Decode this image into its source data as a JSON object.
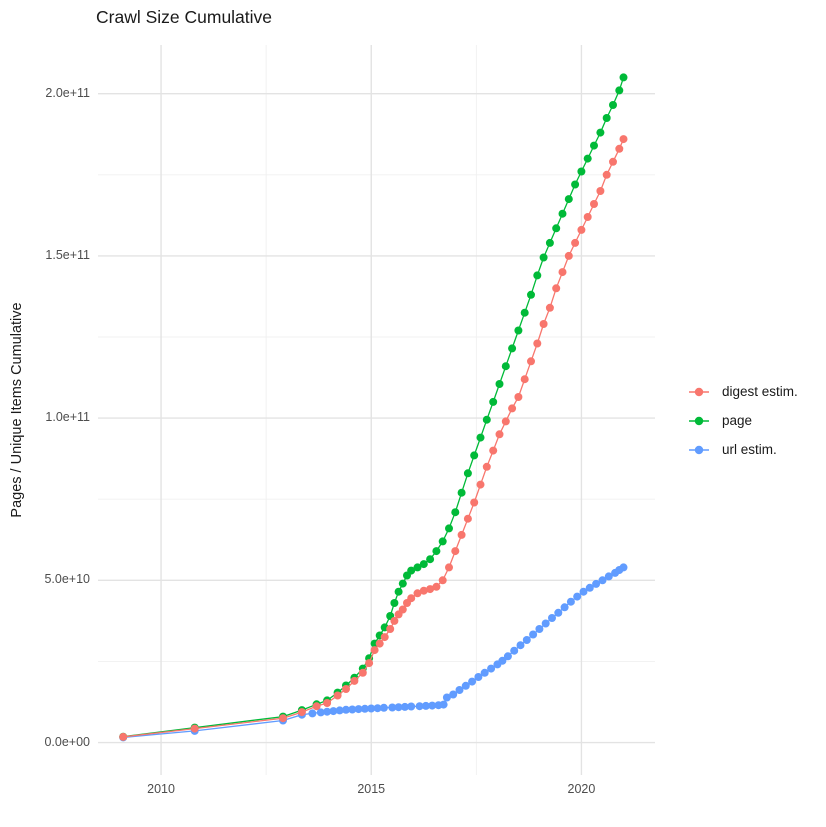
{
  "title": "Crawl Size Cumulative",
  "y_axis_title": "Pages / Unique Items Cumulative",
  "colors": {
    "digest_estim": "#F8766D",
    "page": "#00BA38",
    "url_estim": "#619CFF",
    "grid_major": "#E3E3E3",
    "grid_minor": "#F0F0F0",
    "tick_text": "#4d4d4d",
    "title_text": "#1a1a1a"
  },
  "chart_data": {
    "type": "scatter",
    "title": "Crawl Size Cumulative",
    "xlabel": "",
    "ylabel": "Pages / Unique Items Cumulative",
    "grid": true,
    "legend_position": "right",
    "xlim": [
      2008.5,
      2021.75
    ],
    "ylim": [
      -10000000000.0,
      215000000000.0
    ],
    "x_ticks": [
      2010,
      2015,
      2020
    ],
    "x_tick_labels": [
      "2010",
      "2015",
      "2020"
    ],
    "x_minor_ticks": [
      2012.5,
      2017.5
    ],
    "y_ticks": [
      0,
      50000000000.0,
      100000000000.0,
      150000000000.0,
      200000000000.0
    ],
    "y_tick_labels": [
      "0.0e+00",
      "5.0e+10",
      "1.0e+11",
      "1.5e+11",
      "2.0e+11"
    ],
    "y_minor_ticks": [
      25000000000.0,
      75000000000.0,
      125000000000.0,
      175000000000.0
    ],
    "series": [
      {
        "name": "digest estim.",
        "color": "#F8766D",
        "points": [
          [
            2009.1,
            1750000000.0
          ],
          [
            2010.8,
            4300000000.0
          ],
          [
            2012.9,
            7500000000.0
          ],
          [
            2013.35,
            9400000000.0
          ],
          [
            2013.7,
            11200000000.0
          ],
          [
            2013.95,
            12200000000.0
          ],
          [
            2014.2,
            14500000000.0
          ],
          [
            2014.4,
            16500000000.0
          ],
          [
            2014.6,
            19000000000.0
          ],
          [
            2014.8,
            21500000000.0
          ],
          [
            2014.95,
            24500000000.0
          ],
          [
            2015.08,
            28500000000.0
          ],
          [
            2015.2,
            30500000000.0
          ],
          [
            2015.32,
            32500000000.0
          ],
          [
            2015.45,
            35000000000.0
          ],
          [
            2015.55,
            37500000000.0
          ],
          [
            2015.65,
            39500000000.0
          ],
          [
            2015.75,
            41000000000.0
          ],
          [
            2015.85,
            43000000000.0
          ],
          [
            2015.95,
            44500000000.0
          ],
          [
            2016.1,
            46000000000.0
          ],
          [
            2016.25,
            46800000000.0
          ],
          [
            2016.4,
            47300000000.0
          ],
          [
            2016.55,
            48000000000.0
          ],
          [
            2016.7,
            50000000000.0
          ],
          [
            2016.85,
            54000000000.0
          ],
          [
            2017.0,
            59000000000.0
          ],
          [
            2017.15,
            64000000000.0
          ],
          [
            2017.3,
            69000000000.0
          ],
          [
            2017.45,
            74000000000.0
          ],
          [
            2017.6,
            79500000000.0
          ],
          [
            2017.75,
            85000000000.0
          ],
          [
            2017.9,
            90000000000.0
          ],
          [
            2018.05,
            95000000000.0
          ],
          [
            2018.2,
            99000000000.0
          ],
          [
            2018.35,
            103000000000.0
          ],
          [
            2018.5,
            106500000000.0
          ],
          [
            2018.65,
            112000000000.0
          ],
          [
            2018.8,
            117500000000.0
          ],
          [
            2018.95,
            123000000000.0
          ],
          [
            2019.1,
            129000000000.0
          ],
          [
            2019.25,
            134000000000.0
          ],
          [
            2019.4,
            140000000000.0
          ],
          [
            2019.55,
            145000000000.0
          ],
          [
            2019.7,
            150000000000.0
          ],
          [
            2019.85,
            154000000000.0
          ],
          [
            2020.0,
            158000000000.0
          ],
          [
            2020.15,
            162000000000.0
          ],
          [
            2020.3,
            166000000000.0
          ],
          [
            2020.45,
            170000000000.0
          ],
          [
            2020.6,
            175000000000.0
          ],
          [
            2020.75,
            179000000000.0
          ],
          [
            2020.9,
            183000000000.0
          ],
          [
            2021.0,
            186000000000.0
          ]
        ]
      },
      {
        "name": "page",
        "color": "#00BA38",
        "points": [
          [
            2009.1,
            1800000000.0
          ],
          [
            2010.8,
            4600000000.0
          ],
          [
            2012.9,
            8000000000.0
          ],
          [
            2013.35,
            10000000000.0
          ],
          [
            2013.7,
            11800000000.0
          ],
          [
            2013.95,
            13000000000.0
          ],
          [
            2014.2,
            15400000000.0
          ],
          [
            2014.4,
            17600000000.0
          ],
          [
            2014.6,
            20000000000.0
          ],
          [
            2014.8,
            22800000000.0
          ],
          [
            2014.95,
            26000000000.0
          ],
          [
            2015.08,
            30500000000.0
          ],
          [
            2015.2,
            33000000000.0
          ],
          [
            2015.32,
            35500000000.0
          ],
          [
            2015.45,
            39000000000.0
          ],
          [
            2015.55,
            43000000000.0
          ],
          [
            2015.65,
            46500000000.0
          ],
          [
            2015.75,
            49000000000.0
          ],
          [
            2015.85,
            51500000000.0
          ],
          [
            2015.95,
            53000000000.0
          ],
          [
            2016.1,
            54000000000.0
          ],
          [
            2016.25,
            55000000000.0
          ],
          [
            2016.4,
            56500000000.0
          ],
          [
            2016.55,
            59000000000.0
          ],
          [
            2016.7,
            62000000000.0
          ],
          [
            2016.85,
            66000000000.0
          ],
          [
            2017.0,
            71000000000.0
          ],
          [
            2017.15,
            77000000000.0
          ],
          [
            2017.3,
            83000000000.0
          ],
          [
            2017.45,
            88500000000.0
          ],
          [
            2017.6,
            94000000000.0
          ],
          [
            2017.75,
            99500000000.0
          ],
          [
            2017.9,
            105000000000.0
          ],
          [
            2018.05,
            110500000000.0
          ],
          [
            2018.2,
            116000000000.0
          ],
          [
            2018.35,
            121500000000.0
          ],
          [
            2018.5,
            127000000000.0
          ],
          [
            2018.65,
            132500000000.0
          ],
          [
            2018.8,
            138000000000.0
          ],
          [
            2018.95,
            144000000000.0
          ],
          [
            2019.1,
            149500000000.0
          ],
          [
            2019.25,
            154000000000.0
          ],
          [
            2019.4,
            158500000000.0
          ],
          [
            2019.55,
            163000000000.0
          ],
          [
            2019.7,
            167500000000.0
          ],
          [
            2019.85,
            172000000000.0
          ],
          [
            2020.0,
            176000000000.0
          ],
          [
            2020.15,
            180000000000.0
          ],
          [
            2020.3,
            184000000000.0
          ],
          [
            2020.45,
            188000000000.0
          ],
          [
            2020.6,
            192500000000.0
          ],
          [
            2020.75,
            196500000000.0
          ],
          [
            2020.9,
            201000000000.0
          ],
          [
            2021.0,
            205000000000.0
          ]
        ]
      },
      {
        "name": "url estim.",
        "color": "#619CFF",
        "points": [
          [
            2009.1,
            1600000000.0
          ],
          [
            2010.8,
            3600000000.0
          ],
          [
            2012.9,
            6800000000.0
          ],
          [
            2013.35,
            8600000000.0
          ],
          [
            2013.6,
            9000000000.0
          ],
          [
            2013.8,
            9300000000.0
          ],
          [
            2013.95,
            9500000000.0
          ],
          [
            2014.1,
            9700000000.0
          ],
          [
            2014.25,
            9900000000.0
          ],
          [
            2014.4,
            10100000000.0
          ],
          [
            2014.55,
            10200000000.0
          ],
          [
            2014.7,
            10300000000.0
          ],
          [
            2014.85,
            10400000000.0
          ],
          [
            2015.0,
            10500000000.0
          ],
          [
            2015.15,
            10600000000.0
          ],
          [
            2015.3,
            10700000000.0
          ],
          [
            2015.5,
            10800000000.0
          ],
          [
            2015.65,
            10900000000.0
          ],
          [
            2015.8,
            11000000000.0
          ],
          [
            2015.95,
            11100000000.0
          ],
          [
            2016.15,
            11200000000.0
          ],
          [
            2016.3,
            11300000000.0
          ],
          [
            2016.45,
            11400000000.0
          ],
          [
            2016.6,
            11500000000.0
          ],
          [
            2016.72,
            11700000000.0
          ],
          [
            2016.8,
            13900000000.0
          ],
          [
            2016.95,
            14800000000.0
          ],
          [
            2017.1,
            16200000000.0
          ],
          [
            2017.25,
            17500000000.0
          ],
          [
            2017.4,
            18800000000.0
          ],
          [
            2017.55,
            20200000000.0
          ],
          [
            2017.7,
            21500000000.0
          ],
          [
            2017.85,
            22800000000.0
          ],
          [
            2018.0,
            24100000000.0
          ],
          [
            2018.12,
            25200000000.0
          ],
          [
            2018.25,
            26600000000.0
          ],
          [
            2018.4,
            28300000000.0
          ],
          [
            2018.55,
            30000000000.0
          ],
          [
            2018.7,
            31600000000.0
          ],
          [
            2018.85,
            33300000000.0
          ],
          [
            2019.0,
            35000000000.0
          ],
          [
            2019.15,
            36700000000.0
          ],
          [
            2019.3,
            38400000000.0
          ],
          [
            2019.45,
            40000000000.0
          ],
          [
            2019.6,
            41700000000.0
          ],
          [
            2019.75,
            43400000000.0
          ],
          [
            2019.9,
            45000000000.0
          ],
          [
            2020.05,
            46500000000.0
          ],
          [
            2020.2,
            47700000000.0
          ],
          [
            2020.35,
            48900000000.0
          ],
          [
            2020.5,
            50000000000.0
          ],
          [
            2020.65,
            51200000000.0
          ],
          [
            2020.8,
            52300000000.0
          ],
          [
            2020.9,
            53200000000.0
          ],
          [
            2021.0,
            54000000000.0
          ]
        ]
      }
    ]
  }
}
